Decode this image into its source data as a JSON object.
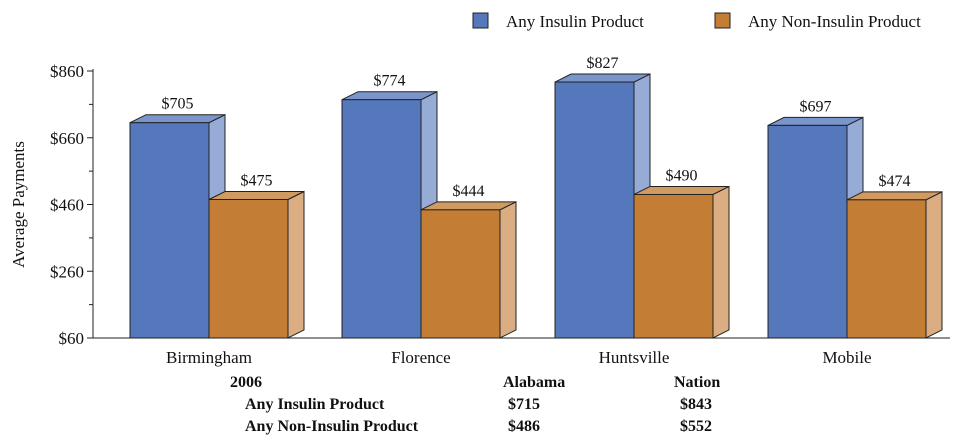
{
  "chart_data": {
    "type": "bar",
    "variant": "3d-grouped",
    "categories": [
      "Birmingham",
      "Florence",
      "Huntsville",
      "Mobile"
    ],
    "series": [
      {
        "name": "Any Insulin Product",
        "values": [
          705,
          774,
          827,
          697
        ],
        "labels": [
          "$705",
          "$774",
          "$827",
          "$697"
        ],
        "color": "#5577bb"
      },
      {
        "name": "Any Non-Insulin Product",
        "values": [
          475,
          444,
          490,
          474
        ],
        "labels": [
          "$475",
          "$444",
          "$490",
          "$474"
        ],
        "color": "#c47d35"
      }
    ],
    "ylabel": "Average Payments",
    "xlabel": "",
    "ylim": [
      60,
      860
    ],
    "yticks": [
      60,
      260,
      460,
      660,
      860
    ],
    "ytick_labels": [
      "$60",
      "$260",
      "$460",
      "$660",
      "$860"
    ],
    "minor_ticks": true,
    "grid": false,
    "legend_position": "top-right"
  },
  "summary": {
    "year": "2006",
    "col_state": "Alabama",
    "col_nation": "Nation",
    "rows": [
      {
        "label": "Any Insulin Product",
        "state": "$715",
        "nation": "$843"
      },
      {
        "label": "Any Non-Insulin Product",
        "state": "$486",
        "nation": "$552"
      }
    ]
  }
}
